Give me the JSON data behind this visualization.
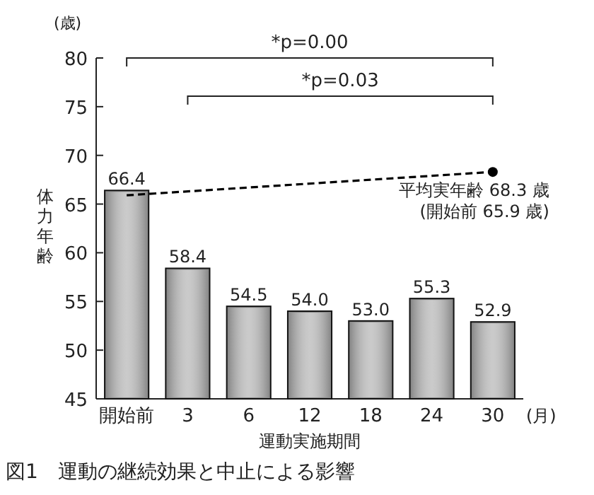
{
  "chart_data": {
    "type": "bar",
    "ylabel": "体力年齢",
    "xlabel": "運動実施期間",
    "categories": [
      "開始前",
      "3",
      "6",
      "12",
      "18",
      "24",
      "30"
    ],
    "ylim": [
      45,
      80
    ],
    "yticks": [
      45,
      50,
      55,
      60,
      65,
      70,
      75,
      80
    ],
    "grid": false,
    "series": [
      {
        "color": "#8a8a8a",
        "values": [
          66.4,
          58.4,
          54.5,
          54.0,
          53.0,
          55.3,
          52.9
        ],
        "value_labels": [
          "66.4",
          "58.4",
          "54.5",
          "54.0",
          "53.0",
          "55.3",
          "52.9"
        ]
      },
      {
        "type": "line",
        "color": "#000000",
        "line_style": "dashed",
        "values": [
          65.9,
          null,
          null,
          null,
          null,
          null,
          68.3
        ]
      },
      {
        "type": "scatter",
        "color": "#000000",
        "marker": "circle",
        "values": [
          null,
          null,
          null,
          null,
          null,
          null,
          68.3
        ]
      }
    ],
    "annotations": [
      "*p=0.00",
      "*p=0.03",
      {
        "text": "平均実年齢 68.3 歳\n(開始前 65.9 歳)",
        "x": "30",
        "y": 68.3
      },
      "(歳)",
      "(月)",
      "図1　運動の継続効果と中止による影響"
    ]
  }
}
